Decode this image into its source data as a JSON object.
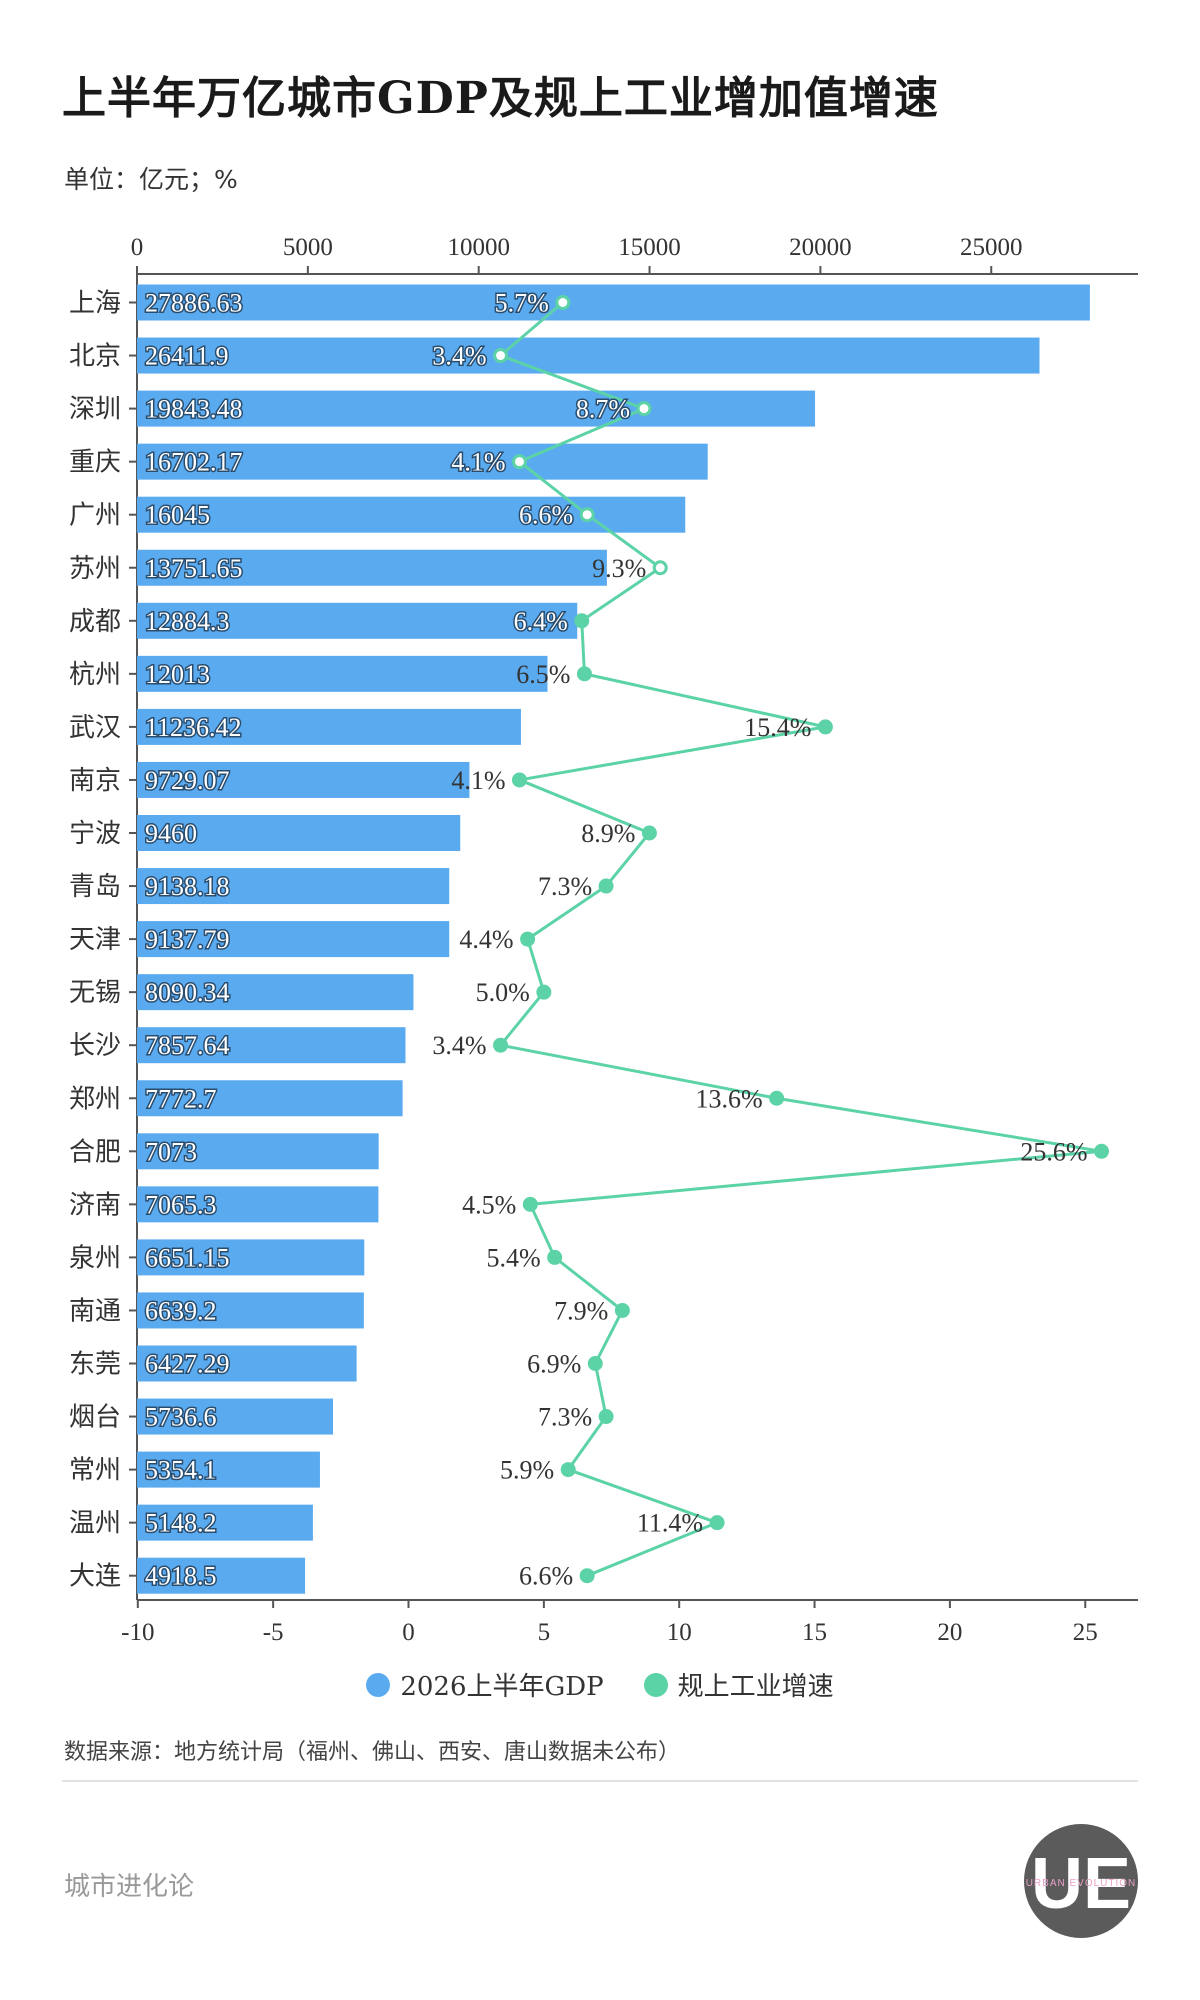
{
  "title": "上半年万亿城市GDP及规上工业增加值增速",
  "unit_label": "单位：亿元；%",
  "legend": {
    "gdp": "2026上半年GDP",
    "growth": "规上工业增速"
  },
  "source": "数据来源：地方统计局（福州、佛山、西安、唐山数据未公布）",
  "brand": "城市进化论",
  "logo": {
    "letters": "UE",
    "text": "URBAN EVOLUTION"
  },
  "colors": {
    "bar": "#5aaaf0",
    "line": "#5cd3a6",
    "axis": "#555555"
  },
  "chart_data": {
    "type": "bar+line",
    "categories": [
      "上海",
      "北京",
      "深圳",
      "重庆",
      "广州",
      "苏州",
      "成都",
      "杭州",
      "武汉",
      "南京",
      "宁波",
      "青岛",
      "天津",
      "无锡",
      "长沙",
      "郑州",
      "合肥",
      "济南",
      "泉州",
      "南通",
      "东莞",
      "烟台",
      "常州",
      "温州",
      "大连"
    ],
    "series": [
      {
        "name": "2026上半年GDP",
        "type": "bar",
        "axis": "top",
        "values": [
          27886.63,
          26411.9,
          19843.48,
          16702.17,
          16045,
          13751.65,
          12884.3,
          12013,
          11236.42,
          9729.07,
          9460,
          9138.18,
          9137.79,
          8090.34,
          7857.64,
          7772.7,
          7073,
          7065.3,
          6651.15,
          6639.2,
          6427.29,
          5736.6,
          5354.1,
          5148.2,
          4918.5
        ],
        "labels": [
          "27886.63",
          "26411.9",
          "19843.48",
          "16702.17",
          "16045",
          "13751.65",
          "12884.3",
          "12013",
          "11236.42",
          "9729.07",
          "9460",
          "9138.18",
          "9137.79",
          "8090.34",
          "7857.64",
          "7772.7",
          "7073",
          "7065.3",
          "6651.15",
          "6639.2",
          "6427.29",
          "5736.6",
          "5354.1",
          "5148.2",
          "4918.5"
        ]
      },
      {
        "name": "规上工业增速",
        "type": "line",
        "axis": "bottom",
        "values": [
          5.7,
          3.4,
          8.7,
          4.1,
          6.6,
          9.3,
          6.4,
          6.5,
          15.4,
          4.1,
          8.9,
          7.3,
          4.4,
          5.0,
          3.4,
          13.6,
          25.6,
          4.5,
          5.4,
          7.9,
          6.9,
          7.3,
          5.9,
          11.4,
          6.6
        ],
        "labels": [
          "5.7%",
          "3.4%",
          "8.7%",
          "4.1%",
          "6.6%",
          "9.3%",
          "6.4%",
          "6.5%",
          "15.4%",
          "4.1%",
          "8.9%",
          "7.3%",
          "4.4%",
          "5.0%",
          "3.4%",
          "13.6%",
          "25.6%",
          "4.5%",
          "5.4%",
          "7.9%",
          "6.9%",
          "7.3%",
          "5.9%",
          "11.4%",
          "6.6%"
        ]
      }
    ],
    "top_axis": {
      "range": [
        0,
        29000
      ],
      "ticks": [
        0,
        5000,
        10000,
        15000,
        20000,
        25000
      ],
      "tick_labels": [
        "0",
        "5000",
        "10000",
        "15000",
        "20000",
        "25000"
      ]
    },
    "bottom_axis": {
      "range": [
        -10,
        27
      ],
      "ticks": [
        -10,
        -5,
        0,
        5,
        10,
        15,
        20,
        25
      ],
      "tick_labels": [
        "-10",
        "-5",
        "0",
        "5",
        "10",
        "15",
        "20",
        "25"
      ]
    },
    "grid": false,
    "legend_position": "bottom-center"
  }
}
